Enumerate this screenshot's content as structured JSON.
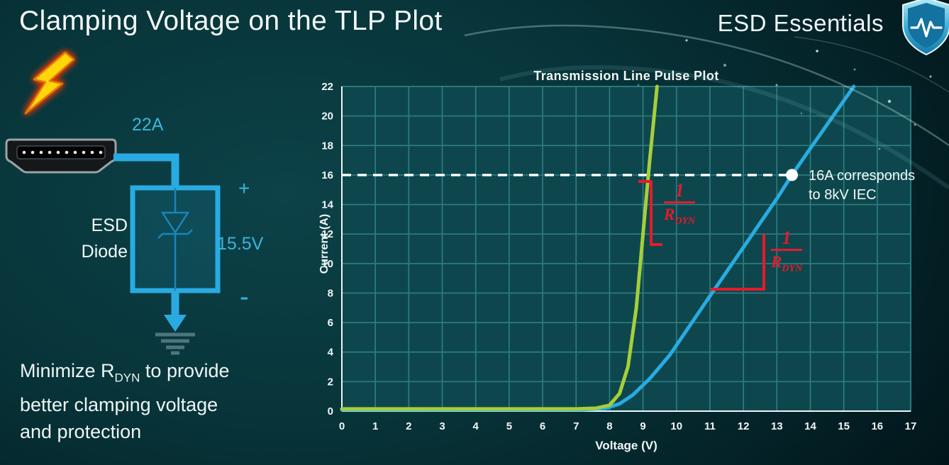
{
  "slide": {
    "title": "Clamping Voltage on the TLP Plot"
  },
  "brand": {
    "name": "ESD Essentials",
    "logo_icon": "shield-pulse-icon"
  },
  "colors": {
    "accent_cyan": "#3cb4dc",
    "wire_blue": "#29abe2",
    "text_white": "#f2f7f7",
    "background_teal": "#073439",
    "annotation_red": "#e8192b"
  },
  "diagram": {
    "strike_icon": "lightning-bolt-icon",
    "connector_icon": "hdmi-connector-icon",
    "ground_icon": "ground-symbol-icon",
    "surge_current_label": "22A",
    "component_label_line1": "ESD",
    "component_label_line2": "Diode",
    "plus_label": "+",
    "clamp_voltage_label": "15.5V",
    "minus_label": "-"
  },
  "note": {
    "line1_pre": "Minimize R",
    "line1_sub": "DYN",
    "line1_post": " to provide",
    "line2": "better clamping voltage",
    "line3": "and protection"
  },
  "chart_data": {
    "type": "line",
    "title": "Transmission Line Pulse Plot",
    "xlabel": "Voltage (V)",
    "ylabel": "Current (A)",
    "xlim": [
      0,
      17
    ],
    "ylim": [
      0,
      22
    ],
    "x_ticks": [
      0,
      1,
      2,
      3,
      4,
      5,
      6,
      7,
      8,
      9,
      10,
      11,
      12,
      13,
      14,
      15,
      16,
      17
    ],
    "y_ticks": [
      0,
      2,
      4,
      6,
      8,
      10,
      12,
      14,
      16,
      18,
      20,
      22
    ],
    "grid": true,
    "legend": "none",
    "colors": {
      "grid": "#2e7f82",
      "axis": "#eef6f6",
      "plot_bg": "#0d474d",
      "reference": "#ffffff",
      "annotation_red": "#e8192b"
    },
    "series": [
      {
        "name": "blue-curve-high-rdyn",
        "color": "#29abe2",
        "points": [
          [
            0,
            0.1
          ],
          [
            7.2,
            0.1
          ],
          [
            7.9,
            0.2
          ],
          [
            8.3,
            0.5
          ],
          [
            8.7,
            1.1
          ],
          [
            9.2,
            2.2
          ],
          [
            9.8,
            3.8
          ],
          [
            10.4,
            5.8
          ],
          [
            11,
            7.8
          ],
          [
            12,
            11.1
          ],
          [
            13,
            14.4
          ],
          [
            13.45,
            16
          ],
          [
            14,
            17.8
          ],
          [
            15.3,
            22
          ]
        ]
      },
      {
        "name": "green-curve-low-rdyn",
        "color": "#a6ce39",
        "points": [
          [
            0,
            0.15
          ],
          [
            7.0,
            0.15
          ],
          [
            7.6,
            0.2
          ],
          [
            8.0,
            0.4
          ],
          [
            8.3,
            1.2
          ],
          [
            8.55,
            3
          ],
          [
            8.8,
            7
          ],
          [
            9.0,
            12
          ],
          [
            9.2,
            17
          ],
          [
            9.42,
            22
          ]
        ]
      }
    ],
    "reference_line": {
      "y": 16,
      "x_start": 0,
      "x_end": 13.45,
      "style": "dashed",
      "color": "#ffffff"
    },
    "marker": {
      "x": 13.45,
      "y": 16,
      "color": "#ffffff"
    },
    "annotations": {
      "marker_note": {
        "line1": "16A corresponds",
        "line2": "to 8kV IEC"
      },
      "slope_green": {
        "numerator": "1",
        "denominator_base": "R",
        "denominator_sub": "DYN"
      },
      "slope_blue": {
        "numerator": "1",
        "denominator_base": "R",
        "denominator_sub": "DYN"
      }
    }
  }
}
